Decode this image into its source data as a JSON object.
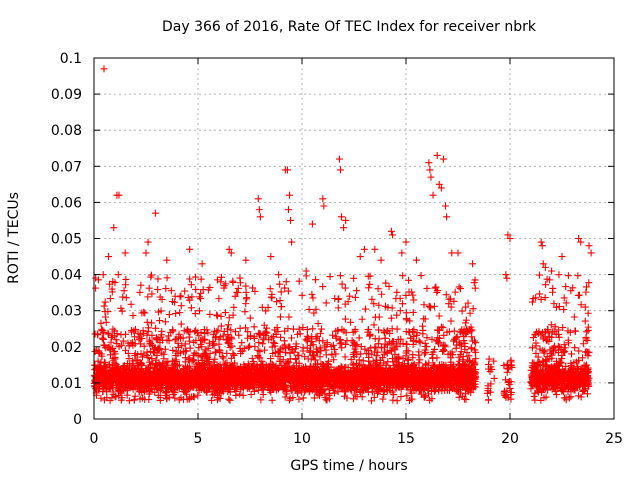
{
  "chart_data": {
    "type": "scatter",
    "title": "Day 366 of 2016, Rate Of TEC Index for receiver nbrk",
    "xlabel": "GPS time / hours",
    "ylabel": "ROTI / TECUs",
    "xlim": [
      0,
      25
    ],
    "ylim": [
      0,
      0.1
    ],
    "xticks": [
      "0",
      "5",
      "10",
      "15",
      "20",
      "25"
    ],
    "yticks": [
      "0",
      "0.01",
      "0.02",
      "0.03",
      "0.04",
      "0.05",
      "0.06",
      "0.07",
      "0.08",
      "0.09",
      "0.1"
    ],
    "grid": true,
    "marker": "plus",
    "color": "#ff0000",
    "series": [
      {
        "points": [
          [
            0.48,
            0.097
          ],
          [
            1.1,
            0.062
          ],
          [
            1.2,
            0.062
          ],
          [
            0.95,
            0.053
          ],
          [
            2.95,
            0.057
          ],
          [
            9.2,
            0.069
          ],
          [
            9.3,
            0.069
          ],
          [
            9.4,
            0.062
          ],
          [
            11.8,
            0.072
          ],
          [
            11.85,
            0.069
          ],
          [
            16.1,
            0.071
          ],
          [
            16.15,
            0.069
          ],
          [
            16.5,
            0.073
          ],
          [
            16.8,
            0.072
          ],
          [
            16.6,
            0.065
          ],
          [
            16.7,
            0.064
          ],
          [
            16.2,
            0.067
          ],
          [
            7.9,
            0.061
          ],
          [
            7.95,
            0.058
          ],
          [
            8.0,
            0.056
          ],
          [
            9.35,
            0.058
          ],
          [
            9.45,
            0.055
          ],
          [
            9.5,
            0.049
          ],
          [
            11.0,
            0.061
          ],
          [
            11.05,
            0.059
          ],
          [
            11.9,
            0.056
          ],
          [
            12.0,
            0.053
          ],
          [
            12.1,
            0.055
          ],
          [
            10.5,
            0.054
          ],
          [
            13.0,
            0.047
          ],
          [
            13.5,
            0.047
          ],
          [
            14.3,
            0.052
          ],
          [
            14.35,
            0.051
          ],
          [
            15.0,
            0.049
          ],
          [
            16.3,
            0.062
          ],
          [
            16.9,
            0.059
          ],
          [
            16.95,
            0.056
          ],
          [
            17.2,
            0.046
          ],
          [
            19.9,
            0.051
          ],
          [
            20.0,
            0.05
          ],
          [
            21.5,
            0.049
          ],
          [
            21.55,
            0.048
          ],
          [
            23.3,
            0.05
          ],
          [
            23.4,
            0.049
          ],
          [
            23.8,
            0.048
          ],
          [
            6.5,
            0.047
          ],
          [
            6.6,
            0.046
          ],
          [
            2.6,
            0.049
          ],
          [
            2.5,
            0.046
          ],
          [
            4.6,
            0.047
          ],
          [
            1.5,
            0.046
          ],
          [
            0.7,
            0.045
          ],
          [
            12.8,
            0.045
          ],
          [
            13.8,
            0.044
          ],
          [
            18.2,
            0.043
          ],
          [
            23.9,
            0.046
          ],
          [
            22.5,
            0.045
          ],
          [
            5.2,
            0.043
          ],
          [
            7.3,
            0.044
          ],
          [
            10.2,
            0.041
          ],
          [
            14.8,
            0.046
          ],
          [
            15.5,
            0.044
          ],
          [
            17.5,
            0.046
          ],
          [
            3.5,
            0.044
          ],
          [
            8.5,
            0.045
          ],
          [
            19.8,
            0.04
          ],
          [
            19.85,
            0.039
          ],
          [
            21.6,
            0.043
          ],
          [
            21.7,
            0.042
          ],
          [
            22.0,
            0.041
          ]
        ]
      }
    ]
  }
}
